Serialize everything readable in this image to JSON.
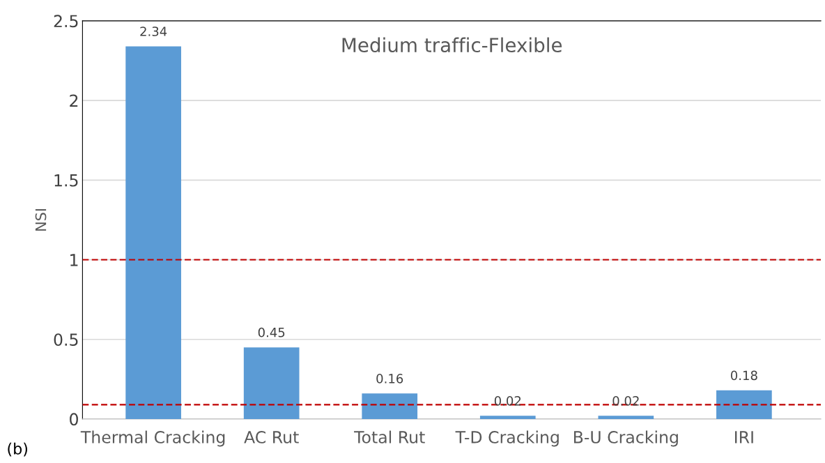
{
  "chart_data": {
    "type": "bar",
    "title": "Medium traffic-Flexible",
    "ylabel": "NSI",
    "categories": [
      "Thermal Cracking",
      "AC Rut",
      "Total Rut",
      "T-D Cracking",
      "B-U Cracking",
      "IRI"
    ],
    "values": [
      2.34,
      0.45,
      0.16,
      0.02,
      0.02,
      0.18
    ],
    "color": "#5b9bd5",
    "data_labels": true,
    "ylim": [
      0,
      2.5
    ],
    "yticks": [
      0,
      0.5,
      1,
      1.5,
      2,
      2.5
    ],
    "grid": "y",
    "ref_lines": [
      {
        "axis": "y",
        "value": 1,
        "color": "#c00000",
        "line_style": "dashed"
      },
      {
        "axis": "y",
        "value": 0.09,
        "color": "#c00000",
        "line_style": "dashed"
      }
    ],
    "annotations": [
      "(b)"
    ]
  }
}
